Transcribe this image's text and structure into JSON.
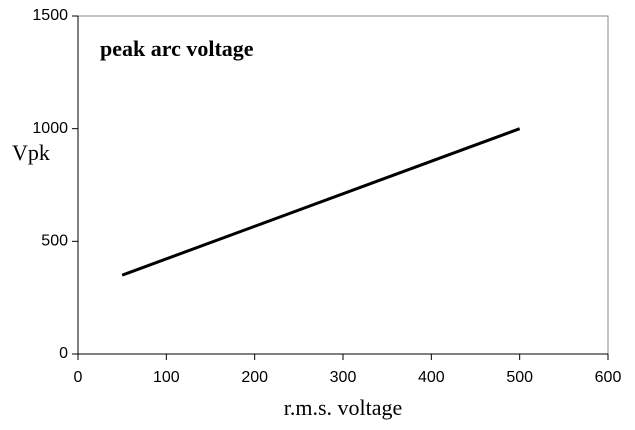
{
  "chart_data": {
    "type": "line",
    "title": "peak arc voltage",
    "xlabel": "r.m.s. voltage",
    "ylabel": "Vpk",
    "x": [
      50,
      500
    ],
    "series": [
      {
        "name": "peak arc voltage",
        "color": "#000000",
        "values": [
          350,
          1000
        ]
      }
    ],
    "xlim": [
      0,
      600
    ],
    "xticks": [
      0,
      100,
      200,
      300,
      400,
      500,
      600
    ],
    "ylim": [
      0,
      1500
    ],
    "yticks": [
      0,
      500,
      1000,
      1500
    ],
    "grid": false
  }
}
